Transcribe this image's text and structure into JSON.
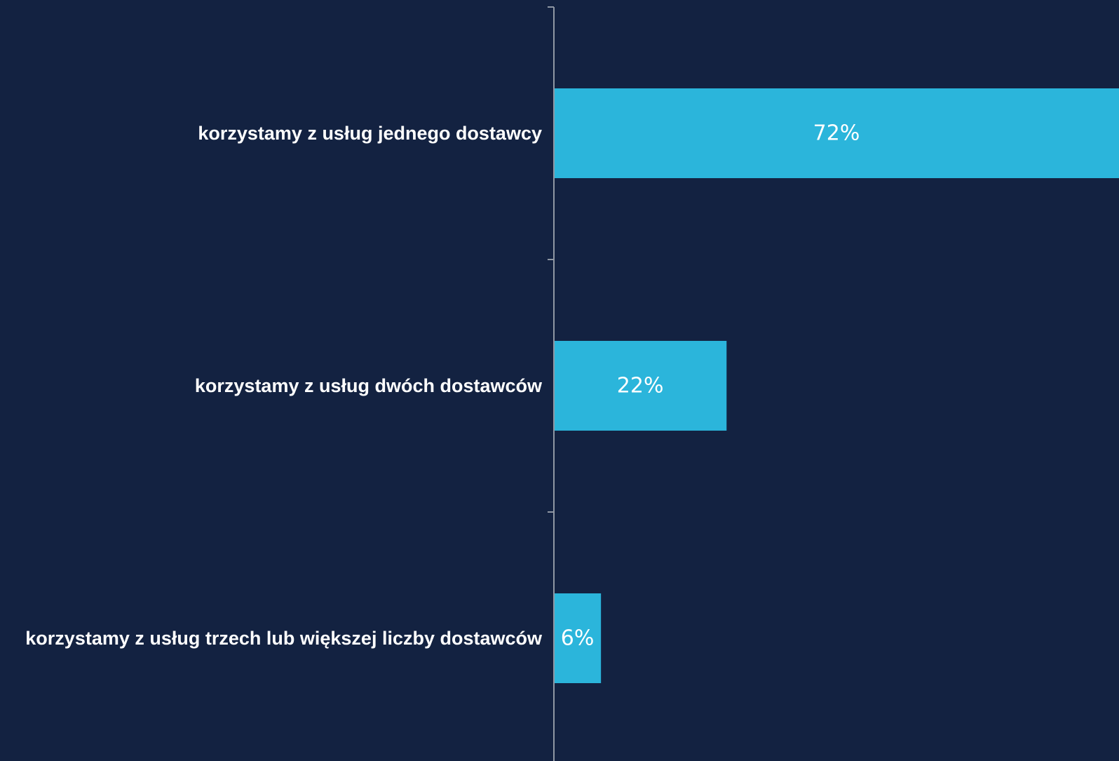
{
  "chart_data": {
    "type": "bar",
    "orientation": "horizontal",
    "title": "",
    "xlabel": "",
    "ylabel": "",
    "categories": [
      "korzystamy z usług jednego dostawcy",
      "korzystamy z usług dwóch dostawców",
      "korzystamy z usług trzech lub większej liczby dostawców"
    ],
    "values": [
      72,
      22,
      6
    ],
    "value_labels": [
      "72%",
      "22%",
      "6%"
    ],
    "xlim": [
      0,
      72
    ],
    "grid": false,
    "legend": "none"
  },
  "colors": {
    "background": "#132241",
    "bar": "#2bb5db",
    "axis": "#8f97a3",
    "category_text": "#ffffff",
    "value_text": "#ffffff"
  }
}
